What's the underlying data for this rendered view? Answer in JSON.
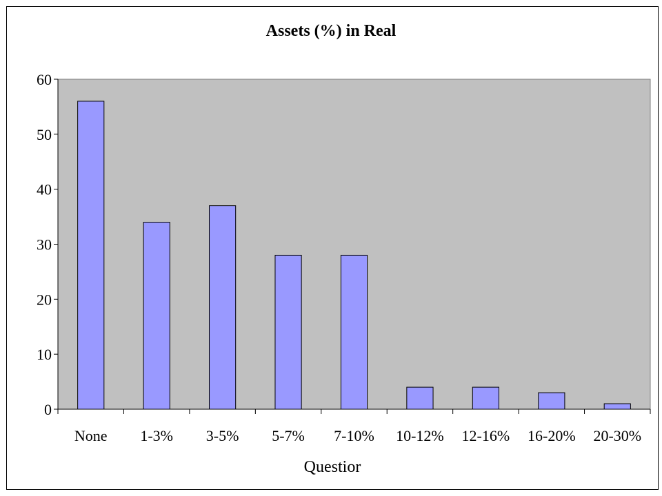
{
  "chart_data": {
    "type": "bar",
    "title": "Assets (%) in Real",
    "xlabel": "Questior",
    "ylabel": "",
    "categories": [
      "None",
      "1-3%",
      "3-5%",
      "5-7%",
      "7-10%",
      "10-12%",
      "12-16%",
      "16-20%",
      "20-30%"
    ],
    "values": [
      56,
      34,
      37,
      28,
      28,
      4,
      4,
      3,
      1
    ],
    "ylim": [
      0,
      60
    ],
    "yticks": [
      0,
      10,
      20,
      30,
      40,
      50,
      60
    ],
    "grid": false,
    "legend": "none",
    "colors": {
      "bar_fill": "#9999ff",
      "bar_stroke": "#000000",
      "plot_background": "#c0c0c0"
    }
  }
}
